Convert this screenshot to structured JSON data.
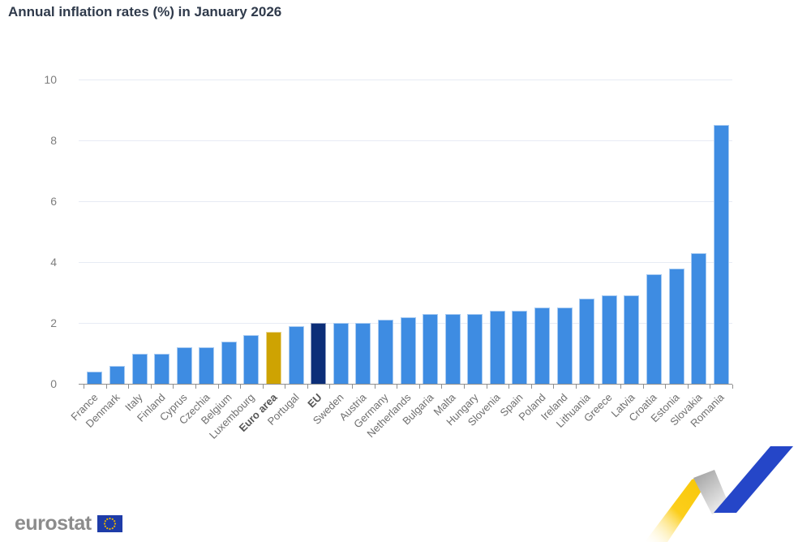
{
  "chart_data": {
    "type": "bar",
    "title": "Annual inflation rates (%) in January 2026",
    "categories": [
      "France",
      "Denmark",
      "Italy",
      "Finland",
      "Cyprus",
      "Czechia",
      "Belgium",
      "Luxembourg",
      "Euro area",
      "Portugal",
      "EU",
      "Sweden",
      "Austria",
      "Germany",
      "Netherlands",
      "Bulgaria",
      "Malta",
      "Hungary",
      "Slovenia",
      "Spain",
      "Poland",
      "Ireland",
      "Lithuania",
      "Greece",
      "Latvia",
      "Croatia",
      "Estonia",
      "Slovakia",
      "Romania"
    ],
    "values": [
      0.4,
      0.6,
      1.0,
      1.0,
      1.2,
      1.2,
      1.4,
      1.6,
      1.7,
      1.9,
      2.0,
      2.0,
      2.0,
      2.1,
      2.2,
      2.3,
      2.3,
      2.3,
      2.4,
      2.4,
      2.5,
      2.5,
      2.8,
      2.9,
      2.9,
      3.6,
      3.8,
      4.3,
      8.5
    ],
    "bold_categories": [
      "Euro area",
      "EU"
    ],
    "xlabel": "",
    "ylabel": "",
    "ylim": [
      0,
      10
    ],
    "yticks": [
      0,
      2,
      4,
      6,
      8,
      10
    ],
    "grid": true,
    "legend": false,
    "bar_colors": {
      "default": "#3E8CE2",
      "Euro area": "#CEA302",
      "EU": "#0C2E78"
    }
  },
  "footer": {
    "logo_text": "eurostat"
  },
  "colors": {
    "title_text": "#2F3A4B",
    "axis_label_text": "#7D7D7D",
    "category_label_text": "#6F6F6F",
    "gridline": "#E7EBF4",
    "axis_line": "#8F8F8F",
    "logo_text": "#8C8C8C",
    "flag_blue": "#1E3CA8",
    "flag_stars": "#E8B400",
    "ribbon_yellow": "#F9C606",
    "ribbon_gray": "#9B9B9B",
    "ribbon_blue": "#2546C8"
  }
}
